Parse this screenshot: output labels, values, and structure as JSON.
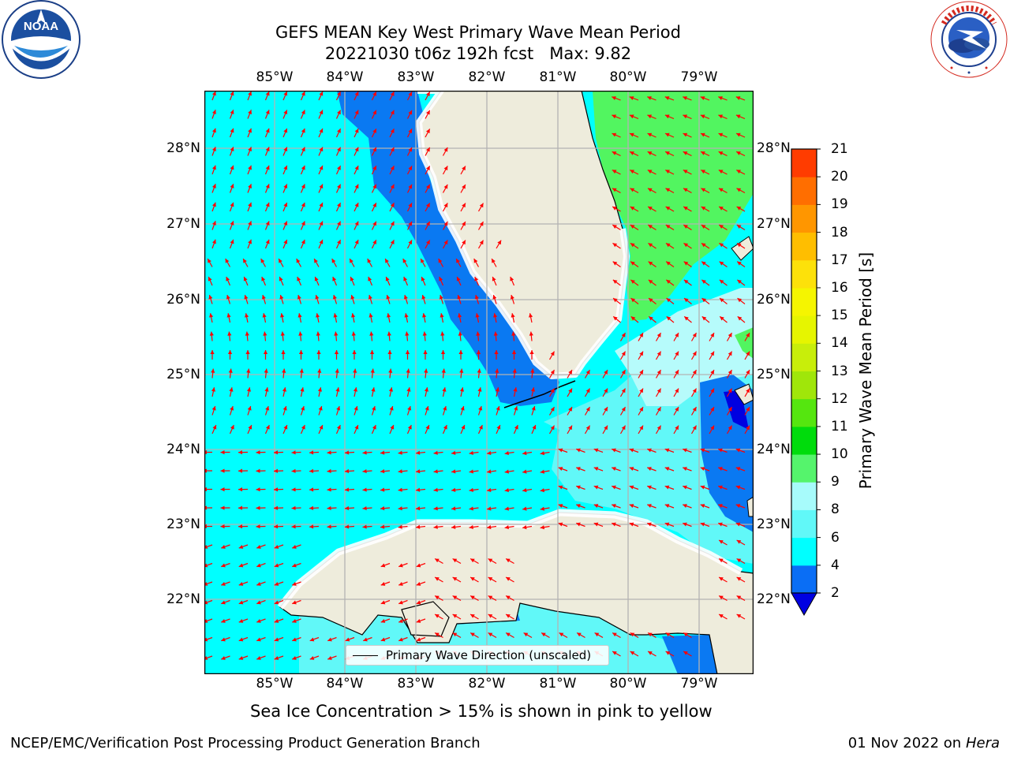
{
  "title": {
    "line1": "GEFS MEAN Key West Primary Wave Mean Period",
    "line2": "20221030 t06z 192h fcst   Max: 9.82"
  },
  "logos": {
    "left": {
      "name": "noaa-logo",
      "text": "NOAA",
      "ring_text": "NATIONAL OCEANIC AND ATMOSPHERIC ADMINISTRATION · U.S. DEPARTMENT OF COMMERCE"
    },
    "right": {
      "name": "nws-logo",
      "ring_text": "NATIONAL WEATHER SERVICE"
    }
  },
  "map": {
    "lon_labels": [
      "85°W",
      "84°W",
      "83°W",
      "82°W",
      "81°W",
      "80°W",
      "79°W"
    ],
    "lat_labels": [
      "28°N",
      "27°N",
      "26°N",
      "25°N",
      "24°N",
      "23°N",
      "22°N"
    ],
    "extent": {
      "lon": [
        -86.0,
        -78.3
      ],
      "lat": [
        21.1,
        28.8
      ]
    },
    "colors": {
      "land": "#eeecdc",
      "ocean_4_6": "#00ffff",
      "ocean_6_8": "#61f8f8",
      "ocean_8_9": "#b6fbfb",
      "ocean_2_4": "#0a79f2",
      "ocean_9_10": "#52f560",
      "below_2": "#0000e1",
      "arrow": "#ff0000",
      "grid": "#b3b3b3"
    },
    "legend_text": "Primary Wave Direction (unscaled)"
  },
  "colorbar": {
    "label": "Primary Wave Mean Period [s]",
    "ticks": [
      "2",
      "4",
      "6",
      "8",
      "9",
      "10",
      "11",
      "12",
      "13",
      "14",
      "15",
      "16",
      "17",
      "18",
      "19",
      "20",
      "21"
    ],
    "colors": [
      "#0a6ef5",
      "#00ffff",
      "#61f8f8",
      "#a7fbfb",
      "#55f46c",
      "#00dc0c",
      "#55e60f",
      "#a0e60a",
      "#c8ee0a",
      "#e6f500",
      "#f5f500",
      "#fde10a",
      "#ffbe00",
      "#ff9600",
      "#ff6e00",
      "#ff3c00"
    ],
    "extend_color": "#0000e1",
    "top_color": "#ff0000"
  },
  "notes": {
    "sea_ice": "Sea Ice Concentration > 15% is shown in pink to yellow"
  },
  "footer": {
    "left": "NCEP/EMC/Verification Post Processing Product Generation Branch",
    "date": "01 Nov 2022 on",
    "machine": "Hera"
  }
}
